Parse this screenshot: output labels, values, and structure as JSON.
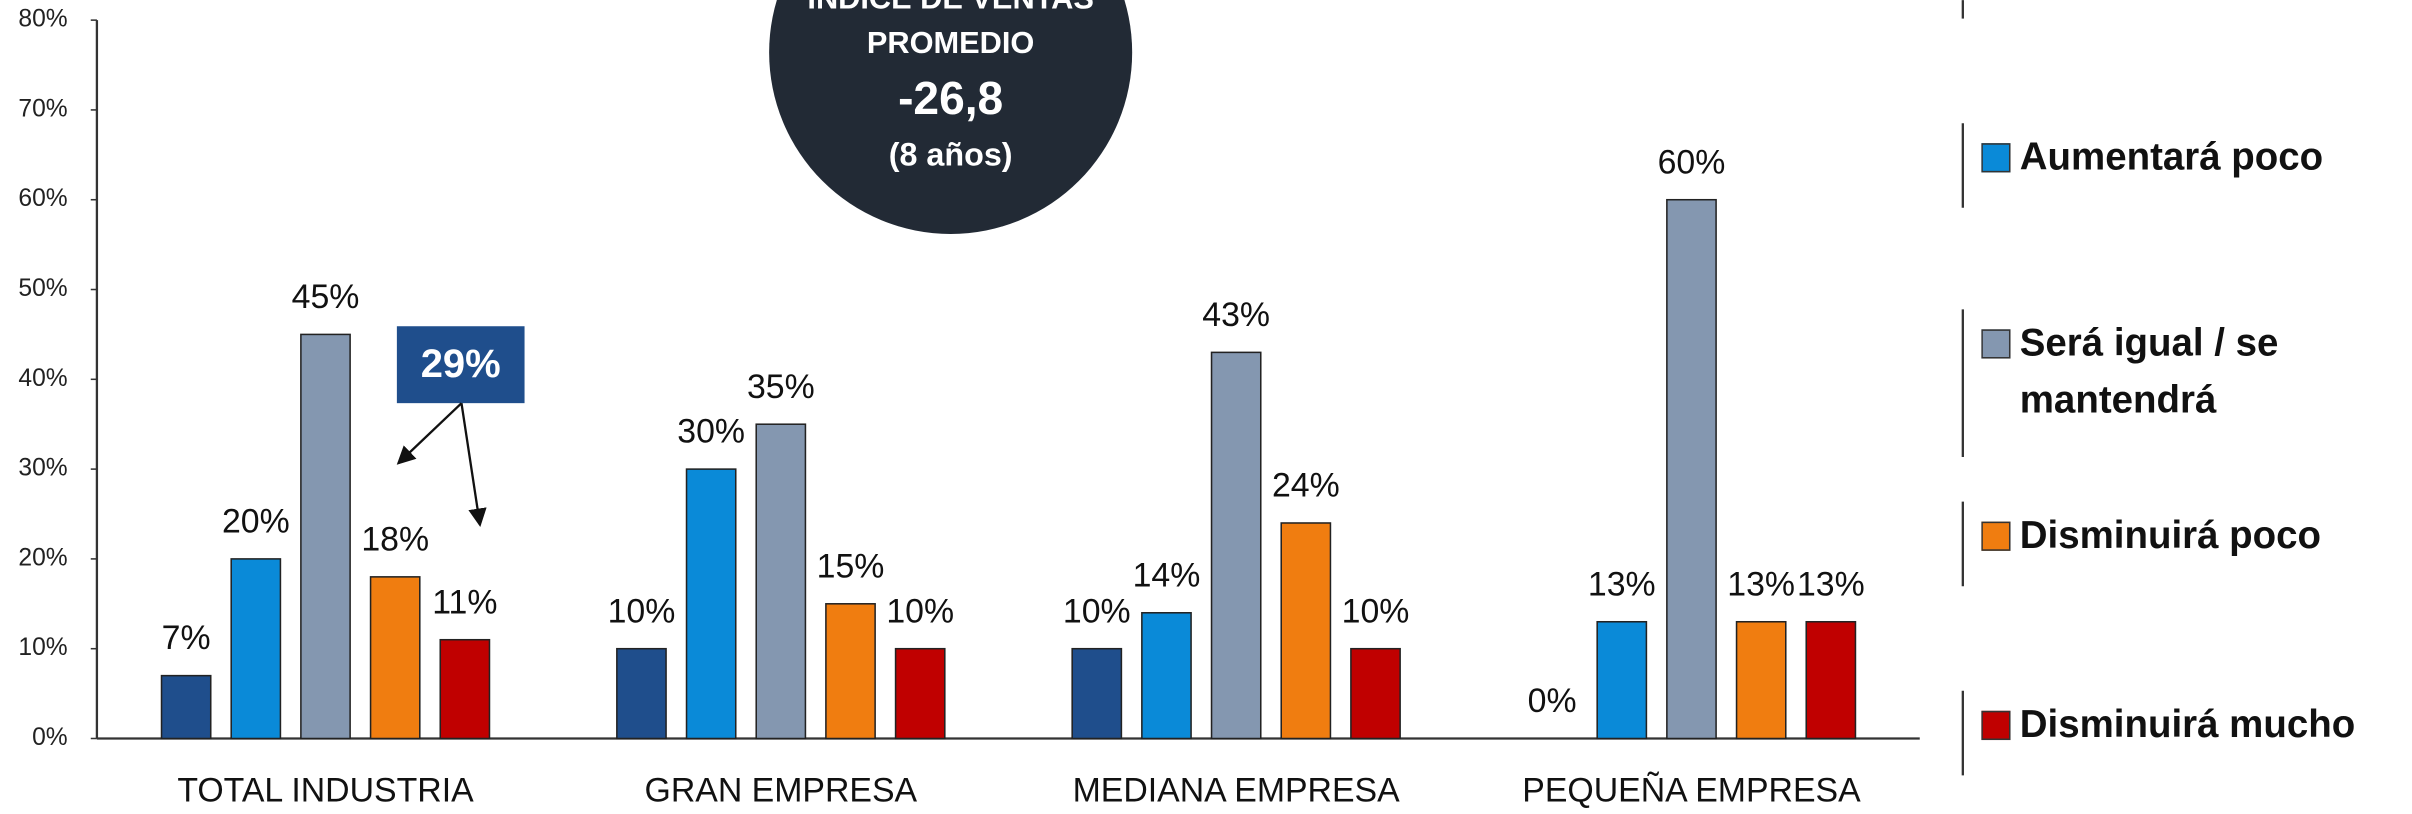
{
  "chart_data": {
    "type": "bar",
    "categories": [
      "TOTAL INDUSTRIA",
      "GRAN EMPRESA",
      "MEDIANA EMPRESA",
      "PEQUEÑA EMPRESA"
    ],
    "series": [
      {
        "color": "#1f4e8c",
        "values": [
          7,
          10,
          10,
          0
        ],
        "value_labels": [
          "7%",
          "10%",
          "10%",
          "0%"
        ]
      },
      {
        "name": "Aumentará poco",
        "color": "#0a8ad8",
        "values": [
          20,
          30,
          14,
          13
        ],
        "value_labels": [
          "20%",
          "30%",
          "14%",
          "13%"
        ]
      },
      {
        "name": "Será igual / se mantendrá",
        "color": "#8497b0",
        "values": [
          45,
          35,
          43,
          60
        ],
        "value_labels": [
          "45%",
          "35%",
          "43%",
          "60%"
        ]
      },
      {
        "name": "Disminuirá poco",
        "color": "#f07d10",
        "values": [
          18,
          15,
          24,
          13
        ],
        "value_labels": [
          "18%",
          "15%",
          "24%",
          "13%"
        ]
      },
      {
        "name": "Disminuirá mucho",
        "color": "#c00000",
        "values": [
          11,
          10,
          10,
          13
        ],
        "value_labels": [
          "11%",
          "10%",
          "10%",
          "13%"
        ]
      }
    ],
    "ylim": [
      0,
      80
    ],
    "yticks": [
      {
        "value": 0,
        "label": "0%"
      },
      {
        "value": 10,
        "label": "10%"
      },
      {
        "value": 20,
        "label": "20%"
      },
      {
        "value": 30,
        "label": "30%"
      },
      {
        "value": 40,
        "label": "40%"
      },
      {
        "value": 50,
        "label": "50%"
      },
      {
        "value": 60,
        "label": "60%"
      },
      {
        "value": 70,
        "label": "70%"
      },
      {
        "value": 80,
        "label": "80%"
      }
    ],
    "grid": false,
    "index_badge": [
      "INDICE DE VENTAS",
      "PROMEDIO",
      "-26,8",
      "(8 años)"
    ],
    "callout": "29%"
  }
}
